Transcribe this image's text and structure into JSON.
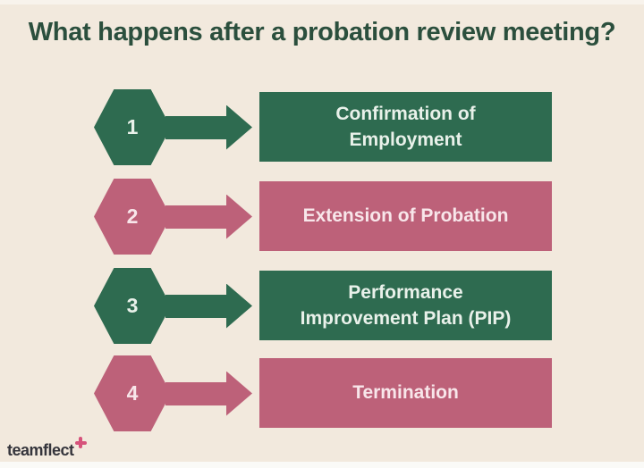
{
  "title": "What happens after a probation review meeting?",
  "steps": [
    {
      "number": "1",
      "label": "Confirmation of\nEmployment",
      "theme": "green"
    },
    {
      "number": "2",
      "label": "Extension of Probation",
      "theme": "pink"
    },
    {
      "number": "3",
      "label": "Performance\nImprovement Plan (PIP)",
      "theme": "green"
    },
    {
      "number": "4",
      "label": "Termination",
      "theme": "pink"
    }
  ],
  "footer": {
    "brand": "teamflect",
    "plus_icon": "plus-sparkle-icon"
  },
  "colors": {
    "background": "#f2e9dd",
    "green": "#2e6b50",
    "pink": "#bd6179",
    "title_text": "#2b4f3d",
    "green_box_text": "#e9f1ea",
    "pink_box_text": "#f8e6ea",
    "brand_text": "#35353c",
    "brand_plus": "#d6537b",
    "bottom_strip": "#fafaf7"
  }
}
